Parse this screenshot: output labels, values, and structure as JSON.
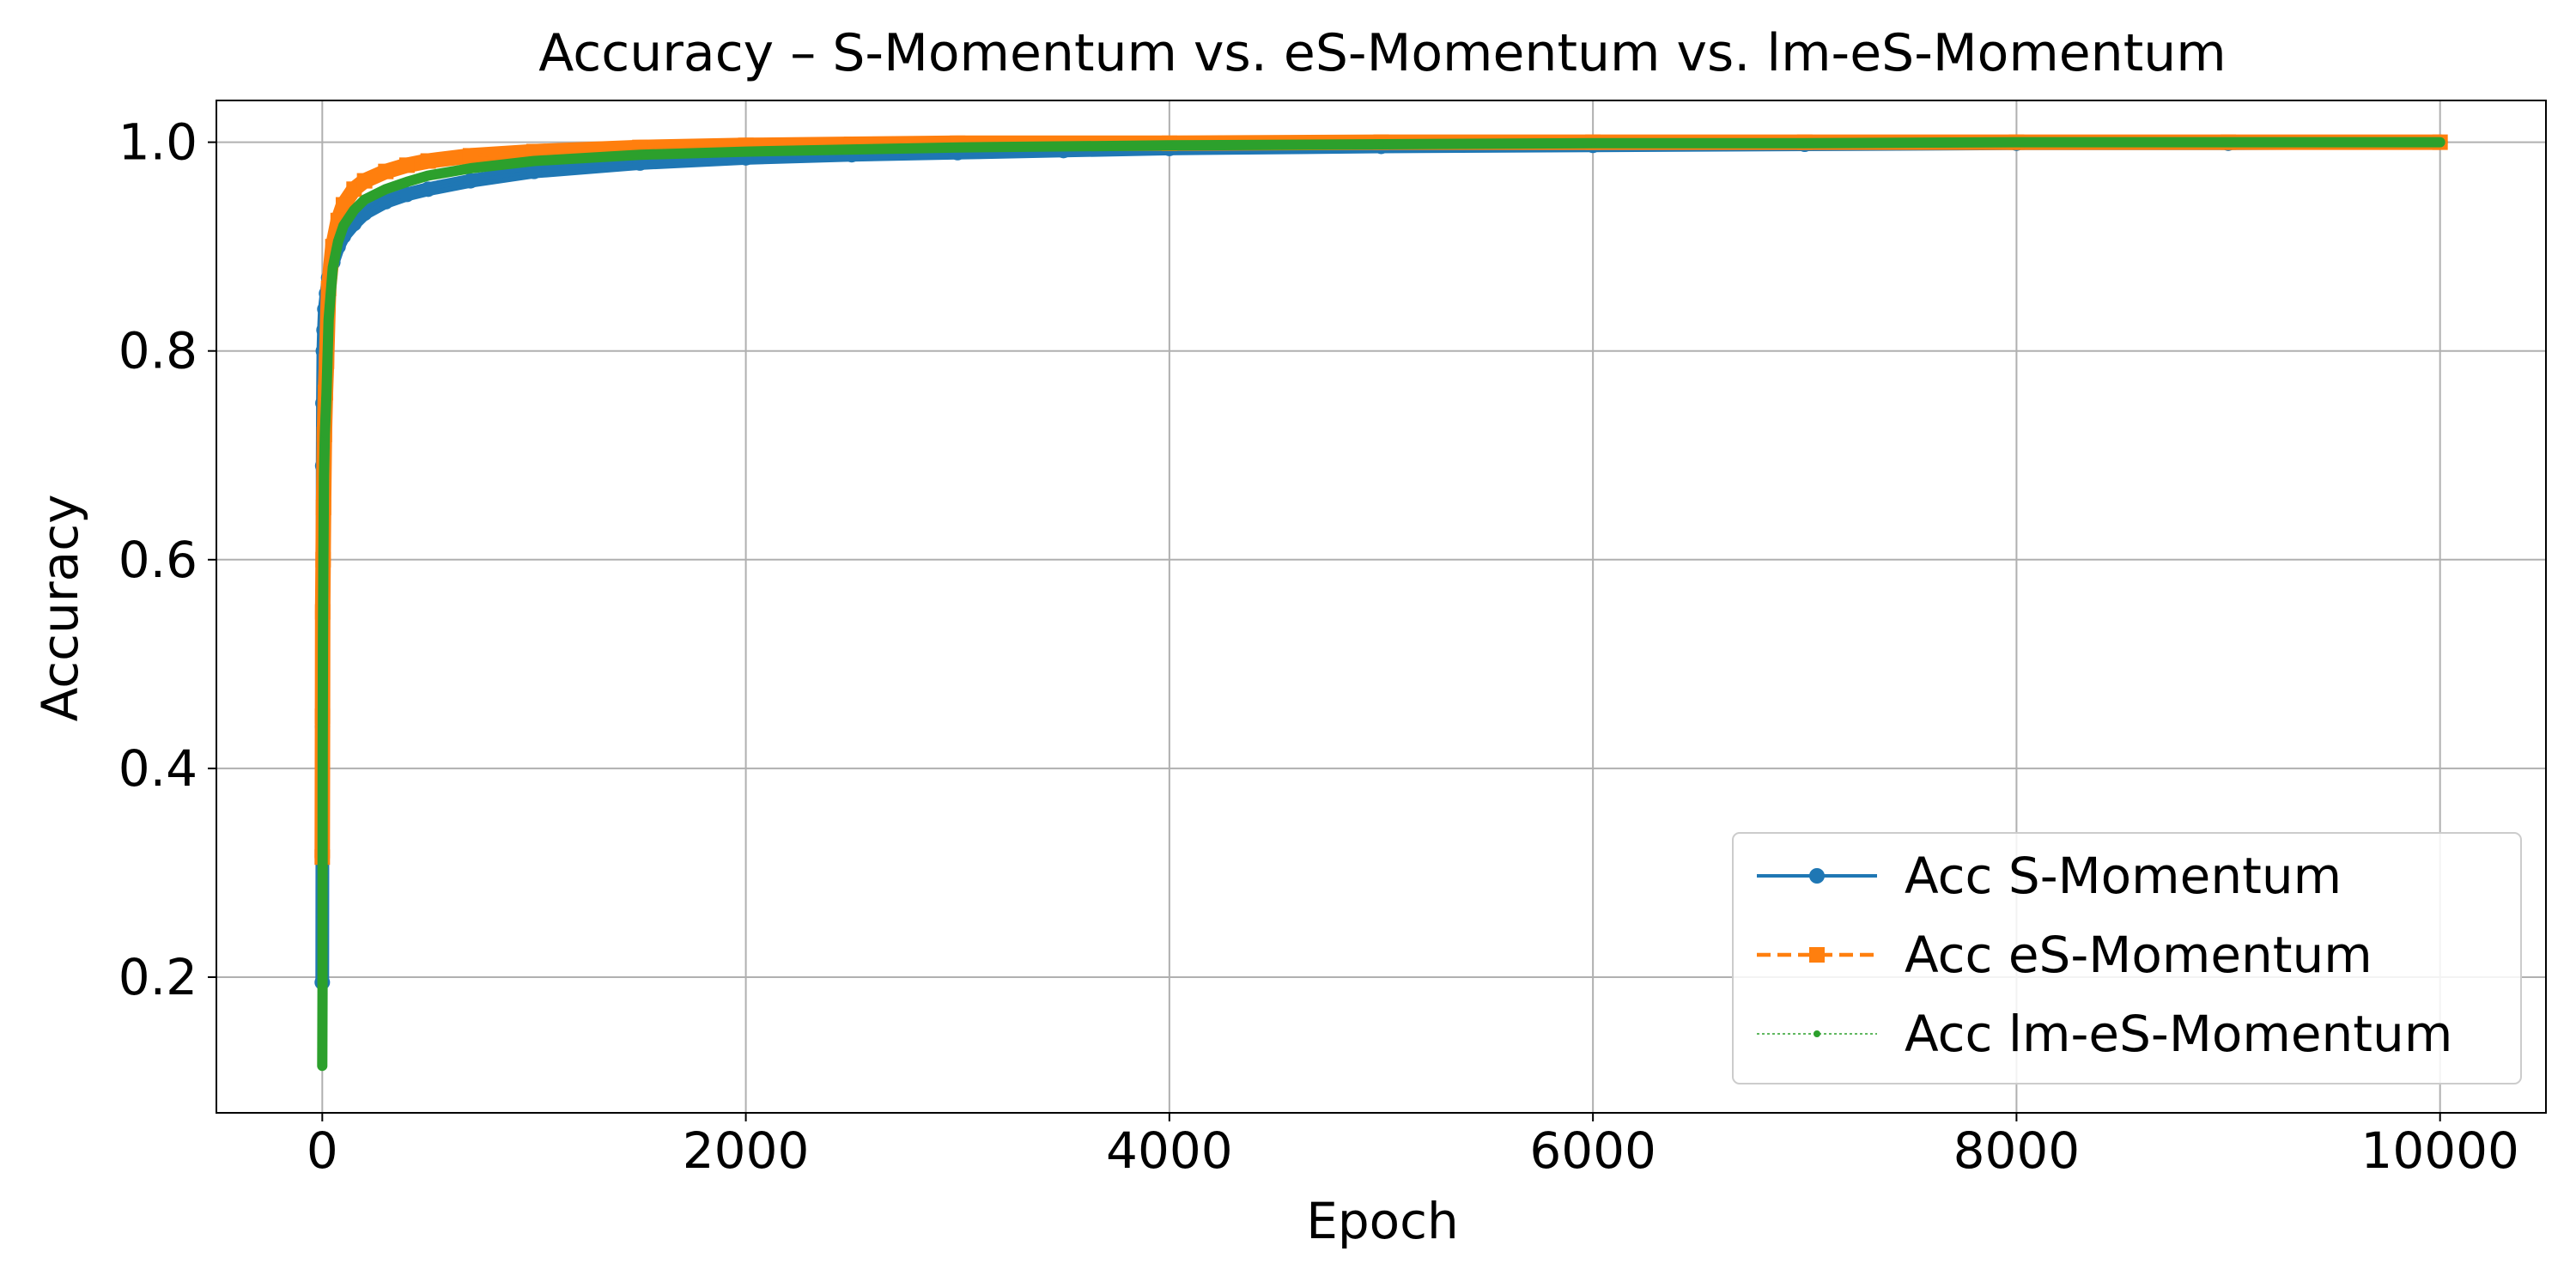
{
  "chart_data": {
    "type": "line",
    "title": "Accuracy – S-Momentum vs. eS-Momentum vs. lm-eS-Momentum",
    "xlabel": "Epoch",
    "ylabel": "Accuracy",
    "xlim": [
      -500,
      10500
    ],
    "ylim": [
      0.07,
      1.04
    ],
    "xticks": [
      0,
      2000,
      4000,
      6000,
      8000,
      10000
    ],
    "yticks": [
      0.2,
      0.4,
      0.6,
      0.8,
      1.0
    ],
    "xtick_labels": [
      "0",
      "2000",
      "4000",
      "6000",
      "8000",
      "10000"
    ],
    "ytick_labels": [
      "0.2",
      "0.4",
      "0.6",
      "0.8",
      "1.0"
    ],
    "grid": true,
    "legend_position": "lower-right",
    "series": [
      {
        "name": "Acc S-Momentum",
        "color": "#1f77b4",
        "marker": "circle",
        "linestyle": "solid",
        "x": [
          0,
          1,
          2,
          3,
          5,
          8,
          12,
          20,
          30,
          50,
          75,
          100,
          150,
          200,
          300,
          400,
          500,
          700,
          1000,
          1500,
          2000,
          2500,
          3000,
          3500,
          4000,
          5000,
          6000,
          7000,
          8000,
          9000,
          10000
        ],
        "y": [
          0.195,
          0.44,
          0.69,
          0.75,
          0.8,
          0.82,
          0.84,
          0.855,
          0.87,
          0.885,
          0.9,
          0.91,
          0.922,
          0.932,
          0.943,
          0.95,
          0.955,
          0.963,
          0.972,
          0.98,
          0.985,
          0.988,
          0.99,
          0.992,
          0.994,
          0.996,
          0.997,
          0.998,
          0.999,
          0.999,
          1.0
        ]
      },
      {
        "name": "Acc eS-Momentum",
        "color": "#ff7f0e",
        "marker": "square",
        "linestyle": "dashed",
        "x": [
          0,
          1,
          2,
          4,
          6,
          10,
          15,
          20,
          30,
          50,
          75,
          100,
          150,
          200,
          300,
          400,
          500,
          700,
          1000,
          1500,
          2000,
          2500,
          3000,
          4000,
          5000,
          6000,
          7000,
          8000,
          9000,
          10000
        ],
        "y": [
          0.315,
          0.45,
          0.55,
          0.6,
          0.65,
          0.72,
          0.76,
          0.79,
          0.86,
          0.9,
          0.925,
          0.94,
          0.955,
          0.963,
          0.972,
          0.978,
          0.982,
          0.987,
          0.991,
          0.995,
          0.997,
          0.998,
          0.999,
          0.999,
          1.0,
          1.0,
          1.0,
          1.0,
          1.0,
          1.0
        ]
      },
      {
        "name": "Acc lm-eS-Momentum",
        "color": "#2ca02c",
        "marker": "dot",
        "linestyle": "thin",
        "x": [
          0,
          1,
          2,
          3,
          5,
          8,
          12,
          20,
          30,
          50,
          75,
          100,
          150,
          200,
          300,
          400,
          500,
          700,
          1000,
          1500,
          2000,
          2500,
          3000,
          4000,
          5000,
          6000,
          7000,
          8000,
          9000,
          10000
        ],
        "y": [
          0.115,
          0.185,
          0.415,
          0.52,
          0.6,
          0.68,
          0.72,
          0.76,
          0.83,
          0.88,
          0.905,
          0.92,
          0.935,
          0.945,
          0.955,
          0.962,
          0.968,
          0.975,
          0.982,
          0.988,
          0.991,
          0.993,
          0.995,
          0.997,
          0.998,
          0.999,
          0.999,
          1.0,
          1.0,
          1.0
        ]
      }
    ]
  }
}
